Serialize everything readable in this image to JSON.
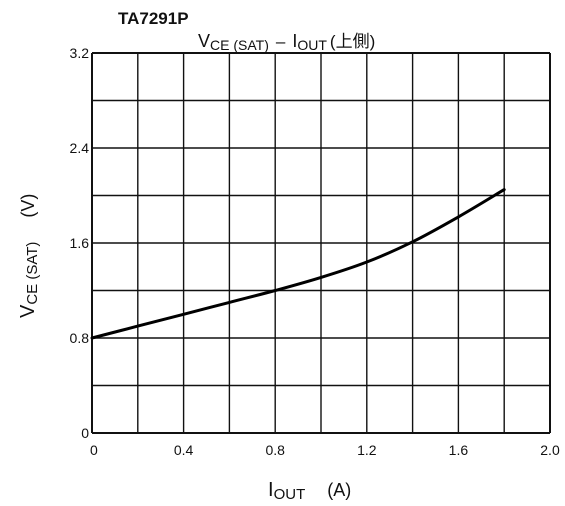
{
  "chart_data": {
    "type": "line",
    "part_number": "TA7291P",
    "title": {
      "y_main": "V",
      "y_sub": "CE (SAT)",
      "dash": "–",
      "x_main": "I",
      "x_sub": "OUT",
      "suffix": "(上側)"
    },
    "xlabel": {
      "main": "I",
      "sub": "OUT",
      "unit": "(A)"
    },
    "ylabel": {
      "main": "V",
      "sub": "CE (SAT)",
      "unit": "(V)"
    },
    "xlim": [
      0,
      2.0
    ],
    "ylim": [
      0,
      3.2
    ],
    "x_ticks": [
      "0",
      "0.4",
      "0.8",
      "1.2",
      "1.6",
      "2.0"
    ],
    "y_ticks": [
      "0",
      "0.8",
      "1.6",
      "2.4",
      "3.2"
    ],
    "x_grid_step": 0.2,
    "y_grid_step": 0.4,
    "grid": true,
    "series": [
      {
        "x": [
          0,
          0.2,
          0.4,
          0.6,
          0.8,
          1.0,
          1.2,
          1.4,
          1.6,
          1.8
        ],
        "y": [
          0.8,
          0.9,
          1.0,
          1.1,
          1.2,
          1.31,
          1.44,
          1.61,
          1.82,
          2.05
        ]
      }
    ]
  }
}
